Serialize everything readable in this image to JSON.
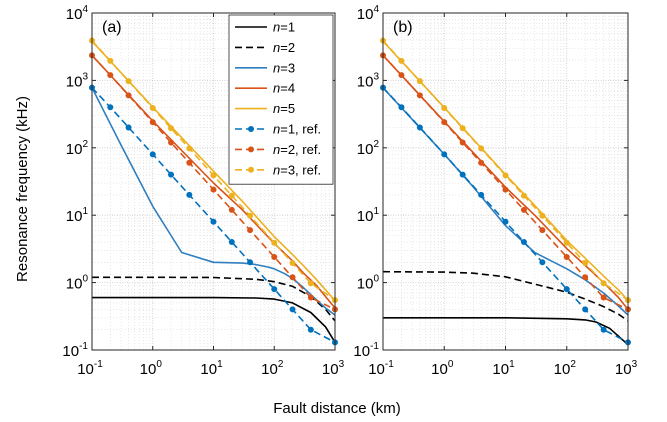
{
  "figure": {
    "ylabel": "Resonance frequency (kHz)",
    "xlabel": "Fault distance (km)"
  },
  "chart_data": [
    {
      "type": "line",
      "panel_label": "(a)",
      "xscale": "log",
      "yscale": "log",
      "xlim": [
        0.1,
        1000
      ],
      "ylim": [
        0.1,
        10000
      ],
      "xticks": [
        "10-1",
        "100",
        "101",
        "102",
        "103"
      ],
      "yticks": [
        "10-1",
        "100",
        "101",
        "102",
        "103",
        "104"
      ],
      "grid": true,
      "legend_position": "top-right",
      "series": [
        {
          "name": "n=1",
          "color": "#000000",
          "style": "solid",
          "markers": false,
          "x": [
            0.1,
            1,
            10,
            50,
            100,
            200,
            400,
            700,
            1000
          ],
          "y": [
            0.6,
            0.6,
            0.6,
            0.59,
            0.57,
            0.5,
            0.36,
            0.22,
            0.13
          ]
        },
        {
          "name": "n=2",
          "color": "#000000",
          "style": "dashed",
          "markers": false,
          "x": [
            0.1,
            1,
            10,
            50,
            100,
            200,
            400,
            700,
            1000
          ],
          "y": [
            1.2,
            1.2,
            1.19,
            1.12,
            1.03,
            0.88,
            0.62,
            0.4,
            0.27
          ]
        },
        {
          "name": "n=3",
          "color": "#2f7fc0",
          "style": "solid",
          "markers": false,
          "x": [
            0.1,
            0.3,
            1,
            3,
            10,
            30,
            50,
            80,
            100,
            150,
            200,
            300,
            500,
            700,
            1000
          ],
          "y": [
            780,
            110,
            13.5,
            2.8,
            2.0,
            1.95,
            1.85,
            1.7,
            1.6,
            1.35,
            1.15,
            0.85,
            0.55,
            0.42,
            0.33
          ]
        },
        {
          "name": "n=4",
          "color": "#d95319",
          "style": "solid",
          "markers": false,
          "x": [
            0.1,
            1,
            10,
            30,
            100,
            200,
            300,
            500,
            700,
            1000
          ],
          "y": [
            2350,
            250,
            30,
            12,
            3.8,
            2.1,
            1.4,
            0.9,
            0.62,
            0.42
          ]
        },
        {
          "name": "n=5",
          "color": "#edb120",
          "style": "solid",
          "markers": false,
          "x": [
            0.1,
            1,
            10,
            30,
            100,
            200,
            300,
            500,
            700,
            1000
          ],
          "y": [
            3800,
            400,
            45,
            16,
            4.8,
            2.6,
            1.8,
            1.1,
            0.78,
            0.54
          ]
        },
        {
          "name": "n=1, ref.",
          "color": "#0072bd",
          "style": "dashed",
          "markers": true,
          "x": [
            0.1,
            0.2,
            0.4,
            1,
            2,
            4,
            10,
            20,
            40,
            100,
            200,
            400,
            1000
          ],
          "y": [
            780,
            400,
            200,
            80,
            40,
            20,
            8,
            4,
            2,
            0.8,
            0.4,
            0.2,
            0.13
          ]
        },
        {
          "name": "n=2, ref.",
          "color": "#d95319",
          "style": "dashed",
          "markers": true,
          "x": [
            0.1,
            0.2,
            0.4,
            1,
            2,
            4,
            10,
            20,
            40,
            100,
            200,
            400,
            1000
          ],
          "y": [
            2350,
            1200,
            600,
            240,
            120,
            60,
            24,
            12,
            6,
            2.4,
            1.2,
            0.6,
            0.4
          ]
        },
        {
          "name": "n=3, ref.",
          "color": "#edb120",
          "style": "dashed",
          "markers": true,
          "x": [
            0.1,
            0.2,
            0.4,
            1,
            2,
            4,
            10,
            20,
            40,
            100,
            200,
            400,
            1000
          ],
          "y": [
            3900,
            1950,
            975,
            390,
            195,
            98,
            39,
            19.5,
            9.8,
            3.9,
            1.95,
            0.98,
            0.55
          ]
        }
      ]
    },
    {
      "type": "line",
      "panel_label": "(b)",
      "xscale": "log",
      "yscale": "log",
      "xlim": [
        0.1,
        1000
      ],
      "ylim": [
        0.1,
        10000
      ],
      "xticks": [
        "10-1",
        "100",
        "101",
        "102",
        "103"
      ],
      "yticks": [
        "10-1",
        "100",
        "101",
        "102",
        "103",
        "104"
      ],
      "grid": true,
      "series": [
        {
          "name": "n=1",
          "color": "#000000",
          "style": "solid",
          "markers": false,
          "x": [
            0.1,
            1,
            10,
            100,
            200,
            300,
            500,
            700,
            1000
          ],
          "y": [
            0.3,
            0.3,
            0.3,
            0.29,
            0.28,
            0.26,
            0.21,
            0.16,
            0.12
          ]
        },
        {
          "name": "n=2",
          "color": "#000000",
          "style": "dashed",
          "markers": false,
          "x": [
            0.1,
            1,
            3,
            10,
            30,
            100,
            200,
            400,
            700,
            1000
          ],
          "y": [
            1.45,
            1.43,
            1.38,
            1.22,
            0.95,
            0.72,
            0.57,
            0.44,
            0.34,
            0.27
          ]
        },
        {
          "name": "n=3",
          "color": "#2f7fc0",
          "style": "solid",
          "markers": false,
          "x": [
            0.1,
            1,
            3,
            10,
            30,
            100,
            200,
            400,
            700,
            1000
          ],
          "y": [
            780,
            80,
            26,
            7,
            2.8,
            1.6,
            1.1,
            0.7,
            0.45,
            0.33
          ]
        },
        {
          "name": "n=4",
          "color": "#d95319",
          "style": "solid",
          "markers": false,
          "x": [
            0.1,
            1,
            10,
            30,
            100,
            200,
            400,
            700,
            1000
          ],
          "y": [
            2350,
            245,
            26,
            10,
            3.2,
            1.8,
            1.0,
            0.6,
            0.4
          ]
        },
        {
          "name": "n=5",
          "color": "#edb120",
          "style": "solid",
          "markers": false,
          "x": [
            0.1,
            1,
            10,
            30,
            100,
            200,
            400,
            700,
            1000
          ],
          "y": [
            3800,
            395,
            40,
            14,
            4.2,
            2.3,
            1.25,
            0.78,
            0.54
          ]
        },
        {
          "name": "n=1, ref.",
          "color": "#0072bd",
          "style": "dashed",
          "markers": true,
          "x": [
            0.1,
            0.2,
            0.4,
            1,
            2,
            4,
            10,
            20,
            40,
            100,
            200,
            400,
            1000
          ],
          "y": [
            780,
            400,
            200,
            80,
            40,
            20,
            8,
            4,
            2,
            0.8,
            0.4,
            0.2,
            0.13
          ]
        },
        {
          "name": "n=2, ref.",
          "color": "#d95319",
          "style": "dashed",
          "markers": true,
          "x": [
            0.1,
            0.2,
            0.4,
            1,
            2,
            4,
            10,
            20,
            40,
            100,
            200,
            400,
            1000
          ],
          "y": [
            2350,
            1200,
            600,
            240,
            120,
            60,
            24,
            12,
            6,
            2.4,
            1.2,
            0.6,
            0.4
          ]
        },
        {
          "name": "n=3, ref.",
          "color": "#edb120",
          "style": "dashed",
          "markers": true,
          "x": [
            0.1,
            0.2,
            0.4,
            1,
            2,
            4,
            10,
            20,
            40,
            100,
            200,
            400,
            1000
          ],
          "y": [
            3900,
            1950,
            975,
            390,
            195,
            98,
            39,
            19.5,
            9.8,
            3.9,
            1.95,
            0.98,
            0.55
          ]
        }
      ]
    }
  ]
}
